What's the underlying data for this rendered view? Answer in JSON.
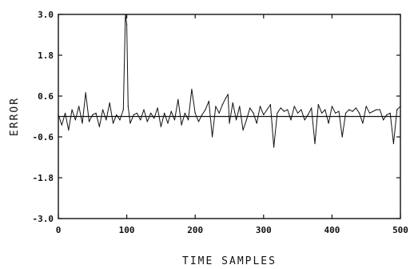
{
  "chart_data": {
    "type": "line",
    "title": "",
    "xlabel": "TIME SAMPLES",
    "ylabel": "ERROR",
    "xlim": [
      0,
      500
    ],
    "ylim": [
      -3.0,
      3.0
    ],
    "grid": false,
    "reference_line_y": 0,
    "x_ticks": [
      0,
      100,
      200,
      300,
      400,
      500
    ],
    "x_tick_labels": [
      "0",
      "100",
      "200",
      "300",
      "400",
      "500"
    ],
    "y_ticks": [
      -3.0,
      -1.8,
      -0.6,
      0.6,
      1.8,
      3.0
    ],
    "y_tick_labels": [
      "-3.0",
      "-1.8",
      "-0.6",
      "0.6",
      "1.8",
      "3.0"
    ],
    "series": [
      {
        "x": [
          0,
          5,
          10,
          15,
          20,
          25,
          30,
          35,
          40,
          45,
          50,
          55,
          60,
          65,
          70,
          75,
          80,
          85,
          90,
          95,
          98,
          100,
          102,
          105,
          110,
          115,
          120,
          125,
          130,
          135,
          140,
          145,
          150,
          155,
          160,
          165,
          170,
          175,
          180,
          185,
          190,
          195,
          200,
          205,
          210,
          215,
          220,
          225,
          230,
          235,
          240,
          245,
          248,
          250,
          255,
          260,
          265,
          270,
          275,
          280,
          285,
          290,
          295,
          300,
          305,
          310,
          315,
          320,
          325,
          330,
          335,
          340,
          345,
          350,
          355,
          360,
          365,
          370,
          375,
          380,
          385,
          390,
          395,
          400,
          405,
          410,
          415,
          420,
          425,
          430,
          435,
          440,
          445,
          450,
          455,
          460,
          465,
          470,
          475,
          480,
          485,
          490,
          495,
          500
        ],
        "y": [
          0.05,
          -0.25,
          0.1,
          -0.4,
          0.2,
          -0.1,
          0.3,
          -0.2,
          0.7,
          -0.15,
          0.05,
          0.1,
          -0.3,
          0.2,
          -0.1,
          0.4,
          -0.2,
          0.05,
          -0.1,
          0.2,
          3.0,
          2.7,
          0.3,
          -0.2,
          0.05,
          0.1,
          -0.1,
          0.2,
          -0.15,
          0.1,
          -0.05,
          0.25,
          -0.3,
          0.1,
          -0.2,
          0.15,
          -0.1,
          0.5,
          -0.25,
          0.1,
          -0.1,
          0.8,
          0.1,
          -0.15,
          0.05,
          0.2,
          0.45,
          -0.6,
          0.3,
          0.1,
          0.35,
          0.55,
          0.65,
          -0.2,
          0.4,
          -0.1,
          0.3,
          -0.4,
          -0.1,
          0.25,
          0.1,
          -0.2,
          0.3,
          0.05,
          0.2,
          0.35,
          -0.9,
          0.1,
          0.25,
          0.15,
          0.2,
          -0.1,
          0.3,
          0.1,
          0.2,
          -0.1,
          0.05,
          0.25,
          -0.8,
          0.35,
          0.1,
          0.2,
          -0.2,
          0.3,
          0.1,
          0.15,
          -0.6,
          0.1,
          0.2,
          0.15,
          0.25,
          0.1,
          -0.2,
          0.3,
          0.1,
          0.15,
          0.2,
          0.2,
          -0.1,
          0.05,
          0.1,
          -0.8,
          0.2,
          0.3
        ]
      }
    ]
  }
}
